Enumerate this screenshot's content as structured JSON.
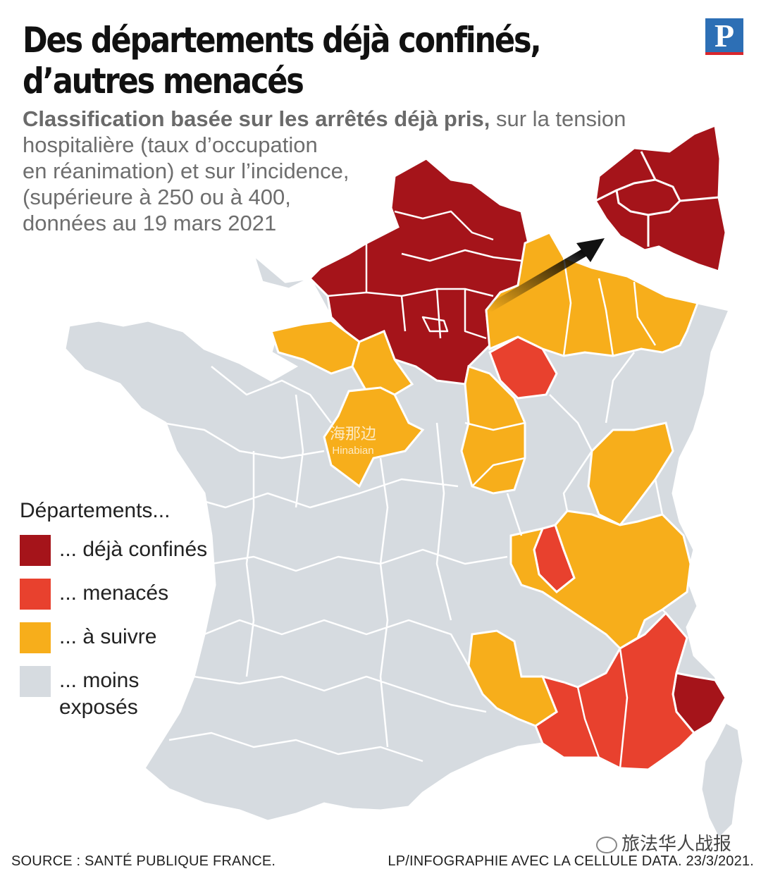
{
  "title_lines": [
    "Des départements déjà confinés,",
    "d’autres menacés"
  ],
  "logo_letter": "P",
  "subtitle": {
    "bold": "Classification basée sur les arrêtés déjà pris,",
    "rest_first_line": " sur la tension",
    "lines": [
      "hospitalière (taux d’occupation",
      "en réanimation) et sur l’incidence,",
      "(supérieure à 250 ou à 400,",
      "données au 19 mars 2021"
    ]
  },
  "legend": {
    "title": "Départements...",
    "items": [
      {
        "label": "... déjà confinés",
        "color": "#a5141a"
      },
      {
        "label": "... menacés",
        "color": "#e8412e"
      },
      {
        "label": "... à suivre",
        "color": "#f7ae1b"
      },
      {
        "label": "... moins\nexposés",
        "color": "#d6dbe0"
      }
    ]
  },
  "colors": {
    "confined": "#a5141a",
    "threatened": "#e8412e",
    "watch": "#f7ae1b",
    "less": "#d6dbe0",
    "border": "#ffffff",
    "arrow": "#1a1a1a"
  },
  "footer": {
    "source": "SOURCE : SANTÉ PUBLIQUE FRANCE.",
    "credit": "LP/INFOGRAPHIE AVEC LA CELLULE DATA.  23/3/2021."
  },
  "watermark": {
    "text": "旅法华人战报",
    "center_cn": "海那边",
    "center_en": "Hinabian"
  }
}
